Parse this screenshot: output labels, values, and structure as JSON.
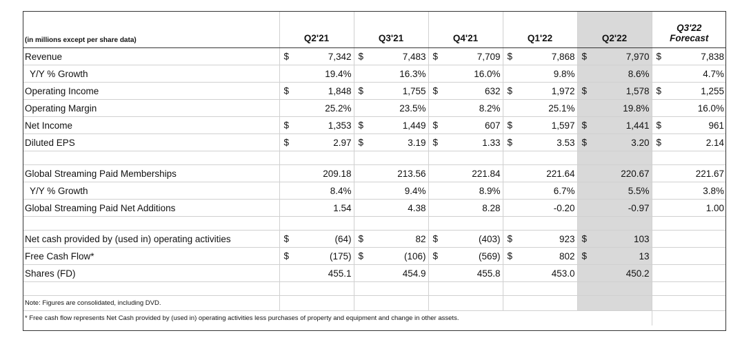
{
  "header": {
    "label": "(in millions except per share data)",
    "columns": [
      "Q2'21",
      "Q3'21",
      "Q4'21",
      "Q1'22",
      "Q2'22",
      "Q3'22"
    ],
    "forecast_sub": "Forecast"
  },
  "rows": [
    {
      "label": "Revenue",
      "dollar": true,
      "values": [
        "7,342",
        "7,483",
        "7,709",
        "7,868",
        "7,970",
        "7,838"
      ]
    },
    {
      "label": "Y/Y % Growth",
      "dollar": false,
      "indent": true,
      "values": [
        "19.4%",
        "16.3%",
        "16.0%",
        "9.8%",
        "8.6%",
        "4.7%"
      ]
    },
    {
      "label": "Operating Income",
      "dollar": true,
      "values": [
        "1,848",
        "1,755",
        "632",
        "1,972",
        "1,578",
        "1,255"
      ]
    },
    {
      "label": "Operating Margin",
      "dollar": false,
      "values": [
        "25.2%",
        "23.5%",
        "8.2%",
        "25.1%",
        "19.8%",
        "16.0%"
      ]
    },
    {
      "label": "Net Income",
      "dollar": true,
      "values": [
        "1,353",
        "1,449",
        "607",
        "1,597",
        "1,441",
        "961"
      ]
    },
    {
      "label": "Diluted EPS",
      "dollar": true,
      "values": [
        "2.97",
        "3.19",
        "1.33",
        "3.53",
        "3.20",
        "2.14"
      ]
    },
    {
      "blank": true
    },
    {
      "label": "Global Streaming Paid Memberships",
      "dollar": false,
      "values": [
        "209.18",
        "213.56",
        "221.84",
        "221.64",
        "220.67",
        "221.67"
      ]
    },
    {
      "label": "Y/Y % Growth",
      "dollar": false,
      "indent": true,
      "values": [
        "8.4%",
        "9.4%",
        "8.9%",
        "6.7%",
        "5.5%",
        "3.8%"
      ]
    },
    {
      "label": "Global Streaming Paid Net Additions",
      "dollar": false,
      "values": [
        "1.54",
        "4.38",
        "8.28",
        "-0.20",
        "-0.97",
        "1.00"
      ]
    },
    {
      "blank": true
    },
    {
      "label": "Net cash provided by (used in) operating activities",
      "dollar": true,
      "values": [
        "(64)",
        "82",
        "(403)",
        "923",
        "103",
        ""
      ]
    },
    {
      "label": "Free Cash Flow*",
      "dollar": true,
      "values": [
        "(175)",
        "(106)",
        "(569)",
        "802",
        "13",
        ""
      ]
    },
    {
      "label": "Shares (FD)",
      "dollar": false,
      "values": [
        "455.1",
        "454.9",
        "455.8",
        "453.0",
        "450.2",
        ""
      ]
    },
    {
      "blank": true
    }
  ],
  "currency_symbol": "$",
  "notes": [
    "Note: Figures are consolidated, including DVD.",
    "* Free cash flow represents Net Cash provided by (used in) operating activities less purchases of property and equipment and change in other assets."
  ],
  "colors": {
    "shade": "#d9d9d9",
    "grid": "#d0d0d0",
    "border": "#333333"
  }
}
